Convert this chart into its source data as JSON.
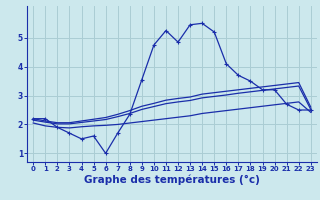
{
  "background_color": "#cce8ed",
  "grid_color": "#aacdd4",
  "line_color": "#1a2eaa",
  "xlabel": "Graphe des températures (°c)",
  "xlabel_fontsize": 7.5,
  "xlim": [
    -0.5,
    23.5
  ],
  "ylim": [
    0.7,
    6.1
  ],
  "xticks": [
    0,
    1,
    2,
    3,
    4,
    5,
    6,
    7,
    8,
    9,
    10,
    11,
    12,
    13,
    14,
    15,
    16,
    17,
    18,
    19,
    20,
    21,
    22,
    23
  ],
  "yticks": [
    1,
    2,
    3,
    4,
    5
  ],
  "line1_x": [
    0,
    1,
    2,
    3,
    4,
    5,
    6,
    7,
    8,
    9,
    10,
    11,
    12,
    13,
    14,
    15,
    16,
    17,
    18,
    19,
    20,
    21,
    22,
    23
  ],
  "line1_y": [
    2.2,
    2.2,
    1.9,
    1.7,
    1.5,
    1.6,
    1.0,
    1.7,
    2.35,
    3.55,
    4.75,
    5.25,
    4.85,
    5.45,
    5.5,
    5.2,
    4.1,
    3.7,
    3.5,
    3.2,
    3.2,
    2.7,
    2.5,
    2.5
  ],
  "line2_x": [
    0,
    1,
    2,
    3,
    4,
    5,
    6,
    7,
    8,
    9,
    10,
    11,
    12,
    13,
    14,
    15,
    16,
    17,
    18,
    19,
    20,
    21,
    22,
    23
  ],
  "line2_y": [
    2.05,
    1.95,
    1.9,
    1.88,
    1.92,
    1.95,
    1.97,
    2.0,
    2.05,
    2.1,
    2.15,
    2.2,
    2.25,
    2.3,
    2.38,
    2.43,
    2.48,
    2.53,
    2.58,
    2.63,
    2.68,
    2.73,
    2.78,
    2.42
  ],
  "line3_x": [
    0,
    1,
    2,
    3,
    4,
    5,
    6,
    7,
    8,
    9,
    10,
    11,
    12,
    13,
    14,
    15,
    16,
    17,
    18,
    19,
    20,
    21,
    22,
    23
  ],
  "line3_y": [
    2.15,
    2.08,
    2.02,
    2.02,
    2.07,
    2.12,
    2.17,
    2.27,
    2.38,
    2.52,
    2.62,
    2.72,
    2.78,
    2.83,
    2.92,
    2.97,
    3.02,
    3.08,
    3.13,
    3.18,
    3.23,
    3.28,
    3.33,
    2.52
  ],
  "line4_x": [
    0,
    1,
    2,
    3,
    4,
    5,
    6,
    7,
    8,
    9,
    10,
    11,
    12,
    13,
    14,
    15,
    16,
    17,
    18,
    19,
    20,
    21,
    22,
    23
  ],
  "line4_y": [
    2.2,
    2.12,
    2.06,
    2.06,
    2.12,
    2.18,
    2.24,
    2.35,
    2.48,
    2.63,
    2.73,
    2.84,
    2.9,
    2.95,
    3.05,
    3.1,
    3.15,
    3.2,
    3.25,
    3.3,
    3.35,
    3.4,
    3.45,
    2.6
  ]
}
